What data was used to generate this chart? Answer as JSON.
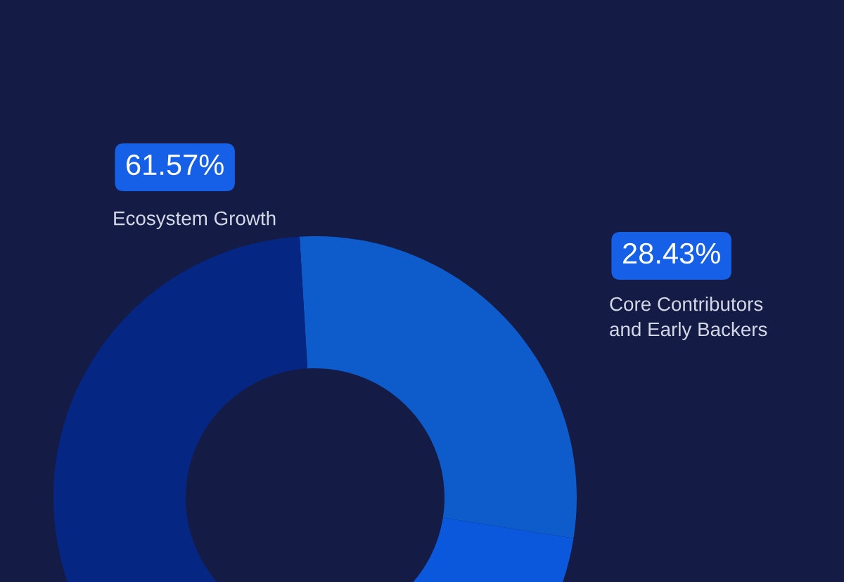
{
  "chart_data": {
    "type": "donut",
    "categories": [
      "Core Contributors\nand Early Backers",
      null,
      "Ecosystem Growth"
    ],
    "values": [
      28.43,
      10,
      61.57
    ],
    "colors": [
      "#0e5ccb",
      "#0b58dd",
      "#062683"
    ],
    "value_labels": [
      "28.43%",
      null,
      "61.57%"
    ]
  }
}
